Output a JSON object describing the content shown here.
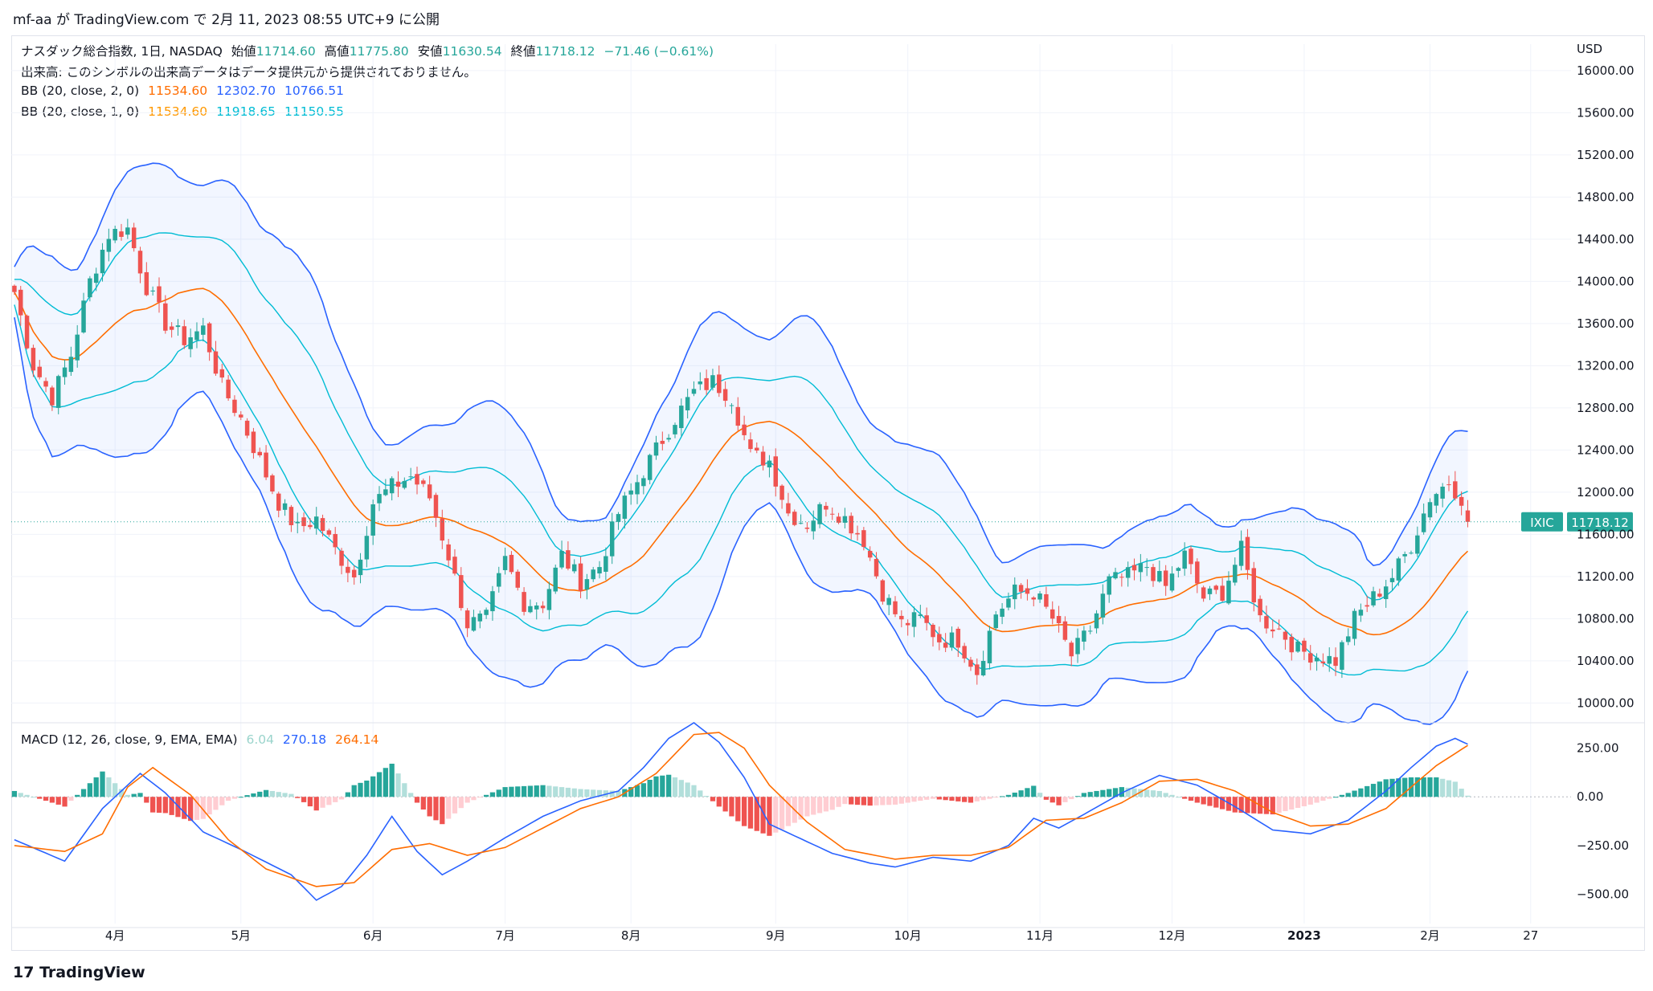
{
  "header": {
    "user": "mf-aa",
    "text": "が TradingView.com で 2月 11, 2023 08:55 UTC+9 に公開"
  },
  "footer": {
    "brand": "TradingView"
  },
  "chart_data": [
    {
      "type": "candlestick",
      "title": "ナスダック総合指数, 1日, NASDAQ",
      "ohlc_label": {
        "open_label": "始値",
        "open": "11714.60",
        "high_label": "高値",
        "high": "11775.80",
        "low_label": "安値",
        "low": "11630.54",
        "close_label": "終値",
        "close": "11718.12",
        "change": "−71.46 (−0.61%)"
      },
      "volume_note": "出来高: このシンボルの出来高データはデータ提供元から提供されておりません。",
      "indicators": [
        {
          "name": "BB (20, close, 2, 0)",
          "values": [
            "11534.60",
            "12302.70",
            "10766.51"
          ],
          "colors": [
            "#ff6d00",
            "#2962ff",
            "#2962ff"
          ]
        },
        {
          "name": "BB (20, close, 1, 0)",
          "values": [
            "11534.60",
            "11918.65",
            "11150.55"
          ],
          "colors": [
            "#ff9800",
            "#00bcd4",
            "#00bcd4"
          ]
        }
      ],
      "currency": "USD",
      "symbol_tag": "IXIC",
      "last_price": "11718.12",
      "ylim": [
        9850,
        16250
      ],
      "y_ticks": [
        "16000.00",
        "15600.00",
        "15200.00",
        "14800.00",
        "14400.00",
        "14000.00",
        "13600.00",
        "13200.00",
        "12800.00",
        "12400.00",
        "12000.00",
        "11600.00",
        "11200.00",
        "10800.00",
        "10400.00",
        "10000.00"
      ],
      "x_ticks": [
        {
          "label": "4月",
          "bar": 16
        },
        {
          "label": "5月",
          "bar": 36
        },
        {
          "label": "6月",
          "bar": 57
        },
        {
          "label": "7月",
          "bar": 78
        },
        {
          "label": "8月",
          "bar": 98
        },
        {
          "label": "9月",
          "bar": 121
        },
        {
          "label": "10月",
          "bar": 142
        },
        {
          "label": "11月",
          "bar": 163
        },
        {
          "label": "12月",
          "bar": 184
        },
        {
          "label": "2023",
          "bar": 205
        },
        {
          "label": "2月",
          "bar": 225
        },
        {
          "label": "27",
          "bar": 241
        }
      ],
      "close_path_keypoints": [
        [
          0,
          13900
        ],
        [
          3,
          13200
        ],
        [
          6,
          12900
        ],
        [
          9,
          13300
        ],
        [
          12,
          14000
        ],
        [
          15,
          14450
        ],
        [
          18,
          14500
        ],
        [
          21,
          13950
        ],
        [
          24,
          13600
        ],
        [
          27,
          13450
        ],
        [
          30,
          13550
        ],
        [
          33,
          13000
        ],
        [
          36,
          12700
        ],
        [
          39,
          12300
        ],
        [
          42,
          11900
        ],
        [
          45,
          11650
        ],
        [
          48,
          11750
        ],
        [
          51,
          11450
        ],
        [
          54,
          11200
        ],
        [
          57,
          11900
        ],
        [
          60,
          12050
        ],
        [
          63,
          12150
        ],
        [
          66,
          11950
        ],
        [
          69,
          11400
        ],
        [
          72,
          10750
        ],
        [
          75,
          10800
        ],
        [
          78,
          11350
        ],
        [
          81,
          10950
        ],
        [
          84,
          10950
        ],
        [
          87,
          11400
        ],
        [
          90,
          11150
        ],
        [
          93,
          11300
        ],
        [
          96,
          11800
        ],
        [
          99,
          12100
        ],
        [
          102,
          12400
        ],
        [
          105,
          12700
        ],
        [
          108,
          12950
        ],
        [
          111,
          13050
        ],
        [
          114,
          12900
        ],
        [
          117,
          12350
        ],
        [
          120,
          12300
        ],
        [
          123,
          11800
        ],
        [
          126,
          11700
        ],
        [
          129,
          11900
        ],
        [
          132,
          11750
        ],
        [
          135,
          11550
        ],
        [
          138,
          11050
        ],
        [
          141,
          10750
        ],
        [
          144,
          10800
        ],
        [
          147,
          10600
        ],
        [
          150,
          10600
        ],
        [
          153,
          10300
        ],
        [
          156,
          10850
        ],
        [
          159,
          11050
        ],
        [
          162,
          11050
        ],
        [
          165,
          10800
        ],
        [
          168,
          10450
        ],
        [
          171,
          10700
        ],
        [
          174,
          11150
        ],
        [
          177,
          11200
        ],
        [
          180,
          11300
        ],
        [
          183,
          11100
        ],
        [
          186,
          11400
        ],
        [
          189,
          11000
        ],
        [
          192,
          11050
        ],
        [
          195,
          11450
        ],
        [
          198,
          10800
        ],
        [
          201,
          10700
        ],
        [
          204,
          10500
        ],
        [
          207,
          10450
        ],
        [
          210,
          10400
        ],
        [
          213,
          10800
        ],
        [
          216,
          11000
        ],
        [
          219,
          11200
        ],
        [
          222,
          11500
        ],
        [
          225,
          11950
        ],
        [
          228,
          12100
        ],
        [
          230,
          11950
        ],
        [
          231,
          11718
        ]
      ],
      "macd": {
        "label": "MACD (12, 26, close, 9, EMA, EMA)",
        "values": [
          "6.04",
          "270.18",
          "264.14"
        ],
        "value_colors": [
          "#9ad4cc",
          "#2962ff",
          "#ff6d00"
        ],
        "ylim": [
          -650,
          380
        ],
        "y_ticks": [
          "250.00",
          "0.00",
          "−250.00",
          "−500.00"
        ],
        "macd_keypoints": [
          [
            0,
            -220
          ],
          [
            8,
            -330
          ],
          [
            14,
            -60
          ],
          [
            20,
            120
          ],
          [
            24,
            20
          ],
          [
            30,
            -180
          ],
          [
            36,
            -270
          ],
          [
            44,
            -400
          ],
          [
            48,
            -530
          ],
          [
            52,
            -460
          ],
          [
            56,
            -300
          ],
          [
            60,
            -100
          ],
          [
            64,
            -280
          ],
          [
            68,
            -400
          ],
          [
            72,
            -330
          ],
          [
            78,
            -210
          ],
          [
            84,
            -100
          ],
          [
            90,
            -20
          ],
          [
            96,
            30
          ],
          [
            100,
            150
          ],
          [
            104,
            300
          ],
          [
            108,
            380
          ],
          [
            112,
            280
          ],
          [
            116,
            100
          ],
          [
            120,
            -140
          ],
          [
            124,
            -200
          ],
          [
            130,
            -290
          ],
          [
            136,
            -340
          ],
          [
            140,
            -360
          ],
          [
            146,
            -310
          ],
          [
            152,
            -330
          ],
          [
            158,
            -250
          ],
          [
            162,
            -110
          ],
          [
            166,
            -160
          ],
          [
            170,
            -90
          ],
          [
            176,
            20
          ],
          [
            182,
            110
          ],
          [
            188,
            60
          ],
          [
            194,
            -50
          ],
          [
            200,
            -170
          ],
          [
            206,
            -190
          ],
          [
            212,
            -120
          ],
          [
            218,
            30
          ],
          [
            222,
            150
          ],
          [
            226,
            260
          ],
          [
            229,
            300
          ],
          [
            231,
            270
          ]
        ],
        "signal_keypoints": [
          [
            0,
            -250
          ],
          [
            8,
            -280
          ],
          [
            14,
            -190
          ],
          [
            18,
            50
          ],
          [
            22,
            150
          ],
          [
            28,
            10
          ],
          [
            34,
            -220
          ],
          [
            40,
            -370
          ],
          [
            48,
            -460
          ],
          [
            54,
            -440
          ],
          [
            60,
            -270
          ],
          [
            66,
            -240
          ],
          [
            72,
            -300
          ],
          [
            78,
            -260
          ],
          [
            84,
            -160
          ],
          [
            90,
            -60
          ],
          [
            96,
            0
          ],
          [
            102,
            120
          ],
          [
            108,
            320
          ],
          [
            112,
            330
          ],
          [
            116,
            250
          ],
          [
            120,
            60
          ],
          [
            126,
            -130
          ],
          [
            132,
            -270
          ],
          [
            140,
            -320
          ],
          [
            146,
            -300
          ],
          [
            152,
            -300
          ],
          [
            158,
            -260
          ],
          [
            164,
            -120
          ],
          [
            170,
            -110
          ],
          [
            176,
            -30
          ],
          [
            182,
            80
          ],
          [
            188,
            90
          ],
          [
            194,
            30
          ],
          [
            200,
            -80
          ],
          [
            206,
            -150
          ],
          [
            212,
            -140
          ],
          [
            218,
            -60
          ],
          [
            222,
            50
          ],
          [
            226,
            160
          ],
          [
            231,
            264
          ]
        ]
      }
    }
  ],
  "colors": {
    "up": "#26a69a",
    "down": "#ef5350",
    "bb_outer": "#2962ff",
    "bb_inner": "#00bcd4",
    "basis": "#ff6d00",
    "fill": "rgba(41,98,255,0.06)",
    "macd": "#2962ff",
    "signal": "#ff6d00",
    "hist_up": "#26a69a",
    "hist_up_light": "#b2dfdb",
    "hist_dn": "#ef5350",
    "hist_dn_light": "#ffcdd2"
  }
}
